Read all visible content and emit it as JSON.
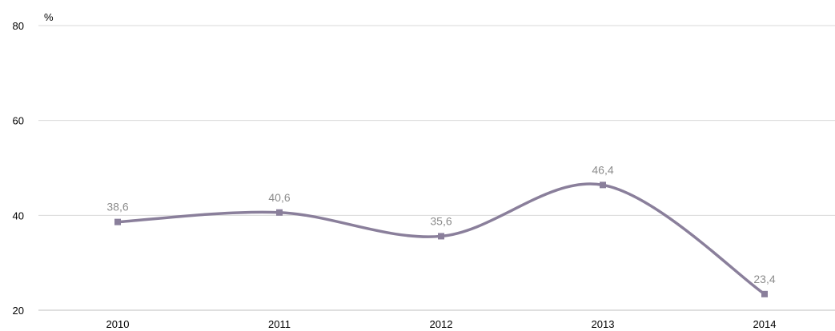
{
  "chart_data": {
    "type": "line",
    "title": "",
    "xlabel": "",
    "ylabel": "",
    "unit": "%",
    "categories": [
      "2010",
      "2011",
      "2012",
      "2013",
      "2014"
    ],
    "series": [
      {
        "values": [
          38.6,
          40.6,
          35.6,
          46.4,
          23.4
        ],
        "labels": [
          "38,6",
          "40,6",
          "35,6",
          "46,4",
          "23,4"
        ]
      }
    ],
    "ylim": [
      20,
      80
    ],
    "yticks": [
      20,
      40,
      60,
      80
    ],
    "ytick_labels": [
      "20",
      "40",
      "60",
      "80"
    ],
    "grid": true,
    "line_style": "smooth",
    "marker": "square",
    "color": "#8a7f9b",
    "label_color": "#8c8c8c"
  }
}
